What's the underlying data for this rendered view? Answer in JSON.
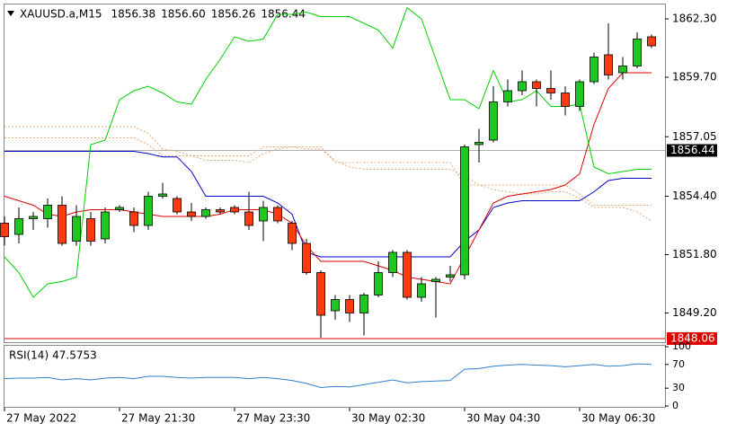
{
  "chart_data": [
    {
      "type": "candlestick",
      "header": {
        "symbol": "XAUUSD.a,M15",
        "values": [
          "1856.38",
          "1856.60",
          "1856.26",
          "1856.44"
        ]
      },
      "categories": [
        "27 May 2022",
        null,
        null,
        null,
        null,
        null,
        null,
        null,
        "27 May 21:30",
        null,
        null,
        null,
        null,
        null,
        null,
        null,
        "27 May 23:30",
        null,
        null,
        null,
        null,
        null,
        null,
        null,
        "30 May 02:30",
        null,
        null,
        null,
        null,
        null,
        null,
        null,
        "30 May 04:30",
        null,
        null,
        null,
        null,
        null,
        null,
        null,
        "30 May 06:30",
        null,
        null,
        null,
        null,
        null
      ],
      "open": [
        1853.2,
        1852.7,
        1853.4,
        1853.4,
        1854.0,
        1852.4,
        1853.4,
        1852.5,
        1853.8,
        1853.7,
        1853.1,
        1854.4,
        1854.3,
        1853.7,
        1853.5,
        1853.8,
        1853.9,
        1853.7,
        1853.3,
        1853.9,
        1853.2,
        1852.3,
        1851.0,
        1849.3,
        1849.8,
        1849.2,
        1850.0,
        1851.0,
        1851.9,
        1849.9,
        1850.6,
        1850.8,
        1850.9,
        1856.7,
        1856.9,
        1858.6,
        1859.1,
        1859.5,
        1859.2,
        1859.0,
        1858.4,
        1859.5,
        1860.7,
        1859.9,
        1860.2,
        1861.5
      ],
      "high": [
        1853.5,
        1853.9,
        1853.7,
        1854.3,
        1854.4,
        1854.0,
        1853.7,
        1853.9,
        1854.0,
        1853.9,
        1854.6,
        1855.0,
        1854.4,
        1854.1,
        1853.9,
        1853.9,
        1854.0,
        1854.6,
        1854.2,
        1854.0,
        1853.3,
        1852.5,
        1851.1,
        1850.0,
        1850.0,
        1850.1,
        1851.5,
        1852.0,
        1852.0,
        1850.8,
        1850.8,
        1851.3,
        1856.7,
        1857.4,
        1859.3,
        1859.6,
        1860.0,
        1859.6,
        1860.0,
        1859.3,
        1859.6,
        1860.8,
        1862.1,
        1860.6,
        1861.7,
        1861.6
      ],
      "low": [
        1852.2,
        1852.3,
        1852.9,
        1853.0,
        1852.2,
        1852.2,
        1852.2,
        1852.3,
        1853.7,
        1852.8,
        1852.9,
        1854.3,
        1853.6,
        1853.3,
        1853.4,
        1853.6,
        1853.6,
        1852.9,
        1852.4,
        1853.2,
        1852.0,
        1850.9,
        1848.1,
        1848.9,
        1848.8,
        1848.2,
        1849.9,
        1850.8,
        1849.8,
        1849.7,
        1849.0,
        1850.6,
        1850.7,
        1855.9,
        1856.8,
        1858.4,
        1858.9,
        1858.4,
        1858.7,
        1858.0,
        1858.2,
        1859.4,
        1859.6,
        1859.6,
        1860.1,
        1861.0
      ],
      "close": [
        1852.6,
        1853.4,
        1853.5,
        1854.0,
        1852.3,
        1853.5,
        1852.4,
        1853.7,
        1853.9,
        1853.1,
        1854.4,
        1854.5,
        1853.7,
        1853.5,
        1853.8,
        1853.7,
        1853.7,
        1853.1,
        1853.9,
        1853.3,
        1852.3,
        1851.0,
        1849.1,
        1849.8,
        1849.2,
        1850.0,
        1851.0,
        1851.9,
        1849.9,
        1850.5,
        1850.7,
        1850.9,
        1856.6,
        1856.8,
        1858.6,
        1859.1,
        1859.5,
        1859.2,
        1859.0,
        1858.4,
        1859.5,
        1860.6,
        1859.8,
        1860.2,
        1861.4,
        1861.1
      ],
      "up_color": "#22c422",
      "down_color": "#ff3a10",
      "lines": [
        {
          "color": "#e8a878",
          "style": "dotted",
          "values": [
            1857.5,
            1857.5,
            1857.5,
            1857.5,
            1857.5,
            1857.5,
            1857.5,
            1857.5,
            1857.5,
            1857.5,
            1857.2,
            1856.5,
            1856.4,
            1856.2,
            1856.0,
            1856.0,
            1856.0,
            1855.9,
            1856.3,
            1856.5,
            1856.6,
            1856.5,
            1856.5,
            1856.0,
            1855.7,
            1855.6,
            1855.6,
            1855.6,
            1855.6,
            1855.6,
            1855.6,
            1855.6,
            1855.3,
            1854.9,
            1854.7,
            1854.6,
            1854.5,
            1854.5,
            1854.6,
            1854.6,
            1854.3,
            1853.9,
            1853.9,
            1853.9,
            1853.7,
            1853.3
          ]
        },
        {
          "color": "#e8a878",
          "style": "dotted",
          "values": [
            1857.0,
            1857.0,
            1857.0,
            1857.0,
            1857.0,
            1857.0,
            1857.0,
            1857.0,
            1857.0,
            1857.0,
            1856.7,
            1856.2,
            1856.2,
            1856.2,
            1856.2,
            1856.2,
            1856.2,
            1856.2,
            1856.6,
            1856.6,
            1856.6,
            1856.6,
            1856.6,
            1855.9,
            1855.9,
            1855.9,
            1855.9,
            1855.9,
            1855.9,
            1855.9,
            1855.9,
            1855.9,
            1854.9,
            1854.9,
            1854.9,
            1854.9,
            1854.9,
            1854.9,
            1854.9,
            1854.9,
            1854.5,
            1854.0,
            1854.0,
            1854.0,
            1854.0,
            1854.0
          ]
        },
        {
          "color": "#0000c8",
          "style": "solid",
          "values": [
            1856.4,
            1856.4,
            1856.4,
            1856.4,
            1856.4,
            1856.4,
            1856.4,
            1856.4,
            1856.4,
            1856.4,
            1856.3,
            1856.15,
            1856.15,
            1855.5,
            1854.4,
            1854.4,
            1854.4,
            1854.4,
            1854.4,
            1854.1,
            1853.6,
            1851.9,
            1851.7,
            1851.7,
            1851.7,
            1851.7,
            1851.7,
            1851.7,
            1851.7,
            1851.7,
            1851.7,
            1851.7,
            1852.4,
            1852.9,
            1853.9,
            1854.1,
            1854.2,
            1854.2,
            1854.2,
            1854.2,
            1854.2,
            1854.6,
            1855.1,
            1855.2,
            1855.2,
            1855.2
          ]
        },
        {
          "color": "#e00000",
          "style": "solid",
          "values": [
            1854.4,
            1854.2,
            1854.0,
            1853.6,
            1853.5,
            1853.7,
            1853.8,
            1853.8,
            1853.8,
            1853.7,
            1853.6,
            1853.5,
            1853.5,
            1853.5,
            1853.5,
            1853.6,
            1853.8,
            1853.8,
            1853.8,
            1853.6,
            1853.2,
            1852.2,
            1851.5,
            1851.5,
            1851.5,
            1851.5,
            1851.3,
            1851.1,
            1850.8,
            1850.7,
            1850.6,
            1850.5,
            1851.7,
            1852.9,
            1854.1,
            1854.4,
            1854.5,
            1854.6,
            1854.7,
            1854.9,
            1855.4,
            1857.6,
            1859.2,
            1859.9,
            1859.9,
            1859.9
          ]
        },
        {
          "color": "#00d000",
          "style": "solid",
          "values": [
            1851.7,
            1851.0,
            1849.9,
            1850.5,
            1850.6,
            1850.8,
            1856.7,
            1856.9,
            1858.7,
            1859.1,
            1859.3,
            1859.0,
            1858.6,
            1858.5,
            1859.6,
            1860.5,
            1861.5,
            1861.3,
            1861.4,
            1862.5,
            1862.5,
            1862.6,
            1862.4,
            1862.4,
            1862.4,
            1862.1,
            1861.8,
            1861.0,
            1862.8,
            1862.3,
            1860.5,
            1858.7,
            1858.7,
            1858.3,
            1860.0,
            1858.6,
            1858.7,
            1859.1,
            1858.4,
            1858.4,
            1858.5,
            1855.7,
            1855.4,
            1855.5,
            1855.6,
            1855.6
          ]
        }
      ],
      "price_labels": [
        {
          "value": 1856.44,
          "color": "#000000",
          "line_color": "#b0b0b0"
        },
        {
          "value": 1848.06,
          "color": "#e00000",
          "line_color": "#e00000"
        }
      ],
      "ylim": [
        1847.9,
        1862.94
      ],
      "yticks": [
        {
          "value": 1862.3,
          "label": "1862.30"
        },
        {
          "value": 1859.7,
          "label": "1859.70"
        },
        1857.05,
        {
          "value": 1854.4,
          "label": "1854.40"
        },
        {
          "value": 1851.8,
          "label": "1851.80"
        },
        {
          "value": 1849.2,
          "label": "1849.20"
        }
      ]
    },
    {
      "type": "line",
      "title": "RSI(14)",
      "value": 47.5753,
      "color": "#2f7fd0",
      "values": [
        46,
        47,
        47,
        48,
        44,
        46,
        44,
        47,
        48,
        46,
        50,
        50,
        48,
        47,
        48,
        48,
        48,
        46,
        48,
        46,
        43,
        38,
        31,
        33,
        32,
        36,
        40,
        44,
        39,
        41,
        42,
        43,
        62,
        63,
        67,
        69,
        70,
        69,
        68,
        66,
        68,
        70,
        67,
        68,
        71,
        70
      ],
      "ylim": [
        0,
        100
      ],
      "yticks": [
        100,
        70,
        30,
        0
      ]
    }
  ]
}
